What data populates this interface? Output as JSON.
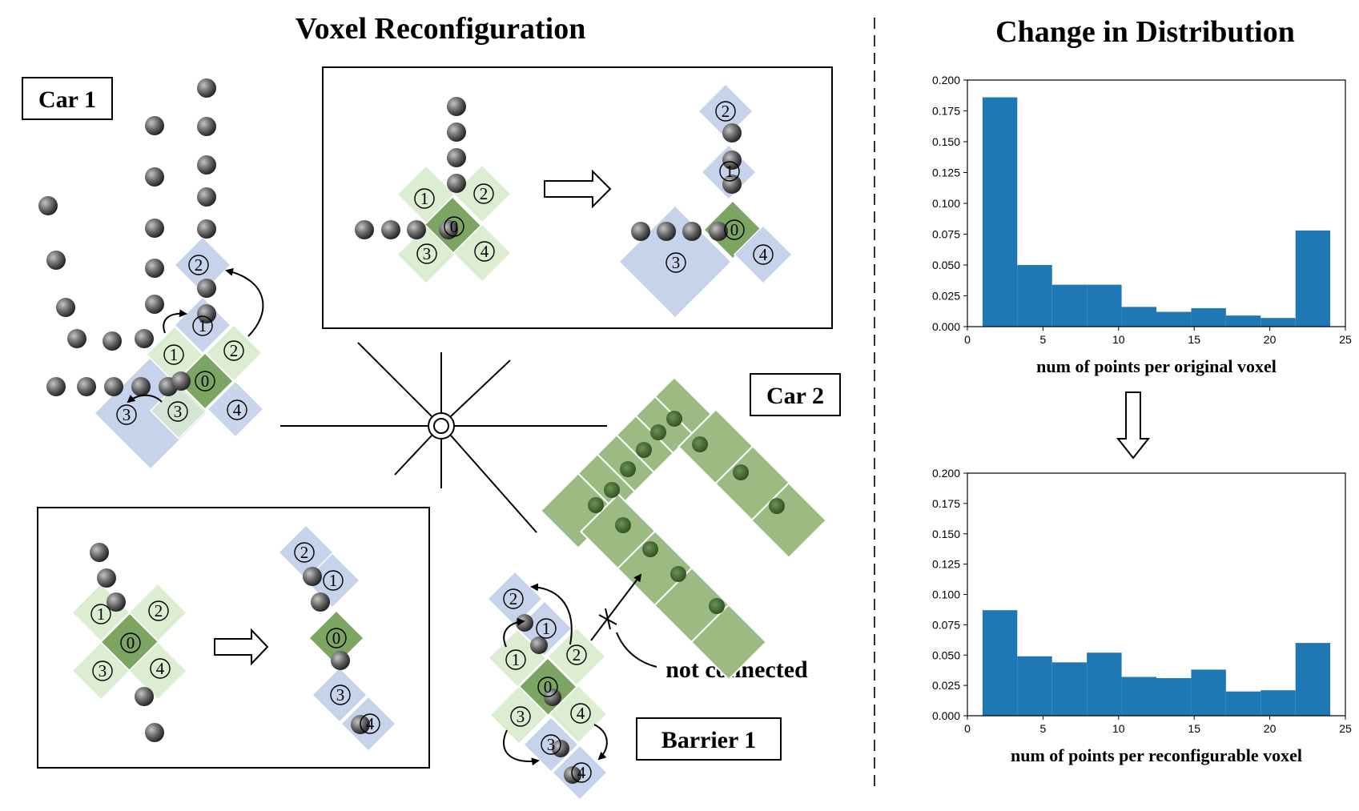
{
  "titles": {
    "left": "Voxel Reconfiguration",
    "right": "Change in Distribution"
  },
  "labels": {
    "car1": "Car 1",
    "car2": "Car 2",
    "barrier1": "Barrier 1",
    "not_connected": "not connected"
  },
  "voxel_numbers": [
    "0",
    "1",
    "2",
    "3",
    "4"
  ],
  "colors": {
    "green_light": "#d9ebcd",
    "green_dark": "#6e9a52",
    "blue_light": "#bccbe6",
    "bar": "#1f77b4",
    "car2_green": "#9bbb83"
  },
  "chart_data": [
    {
      "type": "bar",
      "xlabel": "num of points per original voxel",
      "ylabel": "",
      "xlim": [
        0,
        25
      ],
      "ylim": [
        0,
        0.2
      ],
      "x_ticks": [
        "0",
        "5",
        "10",
        "15",
        "20",
        "25"
      ],
      "y_ticks": [
        "0.000",
        "0.025",
        "0.050",
        "0.075",
        "0.100",
        "0.125",
        "0.150",
        "0.175",
        "0.200"
      ],
      "bins": [
        {
          "x0": 1.0,
          "x1": 3.3,
          "value": 0.186
        },
        {
          "x0": 3.3,
          "x1": 5.6,
          "value": 0.05
        },
        {
          "x0": 5.6,
          "x1": 7.9,
          "value": 0.034
        },
        {
          "x0": 7.9,
          "x1": 10.2,
          "value": 0.034
        },
        {
          "x0": 10.2,
          "x1": 12.5,
          "value": 0.016
        },
        {
          "x0": 12.5,
          "x1": 14.8,
          "value": 0.012
        },
        {
          "x0": 14.8,
          "x1": 17.1,
          "value": 0.015
        },
        {
          "x0": 17.1,
          "x1": 19.4,
          "value": 0.009
        },
        {
          "x0": 19.4,
          "x1": 21.7,
          "value": 0.007
        },
        {
          "x0": 21.7,
          "x1": 24.0,
          "value": 0.078
        }
      ]
    },
    {
      "type": "bar",
      "xlabel": "num of points per reconfigurable voxel",
      "ylabel": "",
      "xlim": [
        0,
        25
      ],
      "ylim": [
        0,
        0.2
      ],
      "x_ticks": [
        "0",
        "5",
        "10",
        "15",
        "20",
        "25"
      ],
      "y_ticks": [
        "0.000",
        "0.025",
        "0.050",
        "0.075",
        "0.100",
        "0.125",
        "0.150",
        "0.175",
        "0.200"
      ],
      "bins": [
        {
          "x0": 1.0,
          "x1": 3.3,
          "value": 0.087
        },
        {
          "x0": 3.3,
          "x1": 5.6,
          "value": 0.049
        },
        {
          "x0": 5.6,
          "x1": 7.9,
          "value": 0.044
        },
        {
          "x0": 7.9,
          "x1": 10.2,
          "value": 0.052
        },
        {
          "x0": 10.2,
          "x1": 12.5,
          "value": 0.032
        },
        {
          "x0": 12.5,
          "x1": 14.8,
          "value": 0.031
        },
        {
          "x0": 14.8,
          "x1": 17.1,
          "value": 0.038
        },
        {
          "x0": 17.1,
          "x1": 19.4,
          "value": 0.02
        },
        {
          "x0": 19.4,
          "x1": 21.7,
          "value": 0.021
        },
        {
          "x0": 21.7,
          "x1": 24.0,
          "value": 0.06
        }
      ]
    }
  ]
}
